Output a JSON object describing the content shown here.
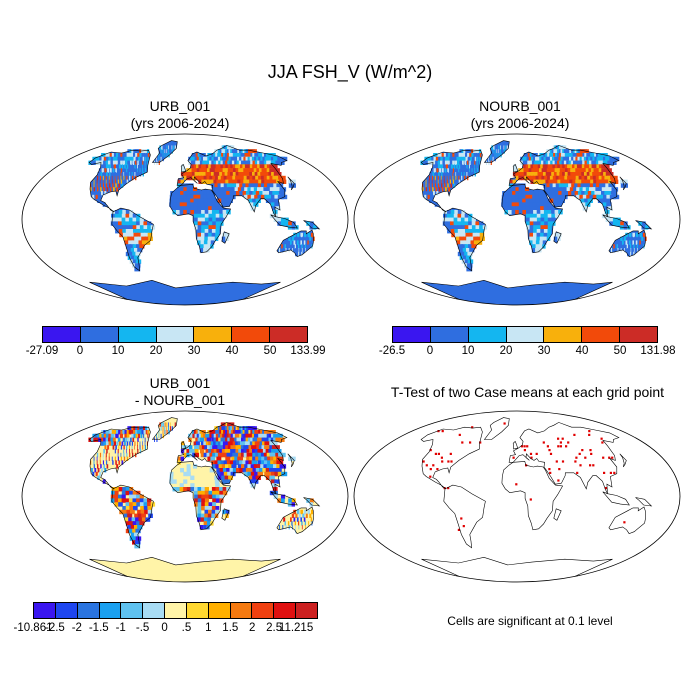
{
  "figure": {
    "title": "JJA FSH_V (W/m^2)",
    "panels": [
      {
        "title_line1": "URB_001",
        "title_line2": "(yrs 2006-2024)"
      },
      {
        "title_line1": "NOURB_001",
        "title_line2": "(yrs 2006-2024)"
      },
      {
        "title_line1": "URB_001",
        "title_line2": "- NOURB_001"
      },
      {
        "title_line1": "T-Test of two Case means at each grid point",
        "title_line2": ""
      }
    ],
    "colorbars": [
      {
        "labels": [
          "-27.09",
          "0",
          "10",
          "20",
          "30",
          "40",
          "50",
          "133.99"
        ],
        "colors": [
          "#3a16f0",
          "#2f6ee0",
          "#14b6f0",
          "#c8e6f4",
          "#f8b00c",
          "#f24a0a",
          "#cc2c26"
        ]
      },
      {
        "labels": [
          "-26.5",
          "0",
          "10",
          "20",
          "30",
          "40",
          "50",
          "131.98"
        ],
        "colors": [
          "#3a16f0",
          "#2f6ee0",
          "#14b6f0",
          "#c8e6f4",
          "#f8b00c",
          "#f24a0a",
          "#cc2c26"
        ]
      },
      {
        "labels": [
          "-10.861",
          "-2.5",
          "-2",
          "-1.5",
          "-1",
          "-.5",
          "0",
          ".5",
          "1",
          "1.5",
          "2",
          "2.5",
          "11.215"
        ],
        "colors": [
          "#3a16f0",
          "#1e46f0",
          "#2a74e0",
          "#1aa0f0",
          "#5fc2f0",
          "#a8dcf4",
          "#fff4a8",
          "#ffd830",
          "#ffb000",
          "#f57a10",
          "#f04010",
          "#e01010",
          "#cc2020"
        ]
      }
    ],
    "significance_note": "Cells are significant at 0.1 level"
  }
}
